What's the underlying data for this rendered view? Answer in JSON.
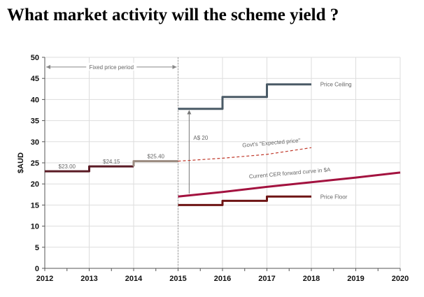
{
  "slide": {
    "title": "What market activity will the scheme yield ?"
  },
  "chart_data": {
    "type": "line",
    "title": "",
    "xlabel": "",
    "ylabel": "$AUD",
    "xlim": [
      2012,
      2020
    ],
    "ylim": [
      0,
      50
    ],
    "x_ticks": [
      2012,
      2013,
      2014,
      2015,
      2016,
      2017,
      2018,
      2019,
      2020
    ],
    "y_ticks": [
      0,
      5,
      10,
      15,
      20,
      25,
      30,
      35,
      40,
      45,
      50
    ],
    "grid": true,
    "colors": {
      "fixed_price": "#5a1a24",
      "fixed_price_step": "#9b8b80",
      "ceiling": "#4a5a66",
      "floor": "#6e1515",
      "forward": "#a3123f",
      "expected": "#c0392b",
      "annotation": "#888888"
    },
    "series": [
      {
        "name": "",
        "key": "fixed_a",
        "color": "#5a1a24",
        "points": [
          [
            2012,
            23.0
          ],
          [
            2013,
            23.0
          ],
          [
            2013,
            24.15
          ],
          [
            2014,
            24.15
          ]
        ]
      },
      {
        "name": "",
        "key": "fixed_b",
        "color": "#9b8b80",
        "points": [
          [
            2014,
            24.15
          ],
          [
            2014,
            25.4
          ],
          [
            2015,
            25.4
          ]
        ]
      },
      {
        "name": "Price Ceiling",
        "key": "ceiling",
        "color": "#4a5a66",
        "points": [
          [
            2015,
            37.8
          ],
          [
            2016,
            37.8
          ],
          [
            2016,
            40.6
          ],
          [
            2017,
            40.6
          ],
          [
            2017,
            43.6
          ],
          [
            2018,
            43.6
          ]
        ]
      },
      {
        "name": "Price Floor",
        "key": "floor",
        "color": "#6e1515",
        "points": [
          [
            2015,
            15.0
          ],
          [
            2016,
            15.0
          ],
          [
            2016,
            16.0
          ],
          [
            2017,
            16.0
          ],
          [
            2017,
            17.0
          ],
          [
            2018,
            17.0
          ]
        ]
      },
      {
        "name": "Current CER forward curve in $A",
        "key": "forward",
        "color": "#a3123f",
        "points": [
          [
            2015,
            17.0
          ],
          [
            2016,
            18.1
          ],
          [
            2017,
            19.3
          ],
          [
            2018,
            20.4
          ],
          [
            2019,
            21.5
          ],
          [
            2020,
            22.7
          ]
        ]
      },
      {
        "name": "Govt's \"Expected price\"",
        "key": "expected",
        "color": "#c0392b",
        "dashed": true,
        "points": [
          [
            2015,
            25.4
          ],
          [
            2016,
            26.1
          ],
          [
            2017,
            27.0
          ],
          [
            2018,
            28.6
          ]
        ]
      }
    ],
    "point_labels": [
      {
        "text": "$23.00",
        "x": 2012.5,
        "y": 23.0
      },
      {
        "text": "$24.15",
        "x": 2013.5,
        "y": 24.15
      },
      {
        "text": "$25.40",
        "x": 2014.5,
        "y": 25.4
      }
    ],
    "annotations": {
      "fixed_period": {
        "text": "Fixed price period",
        "x_from": 2012,
        "x_to": 2015,
        "y": 47.7
      },
      "gap": {
        "text": "A$ 20",
        "x": 2015.25,
        "y_from": 17.7,
        "y_to": 37.5
      },
      "divider_x": 2015,
      "ceiling_label": "Price Ceiling",
      "floor_label": "Price Floor",
      "forward_label": "Current CER forward curve in $A",
      "expected_label": "Govt's \"Expected price\""
    }
  }
}
